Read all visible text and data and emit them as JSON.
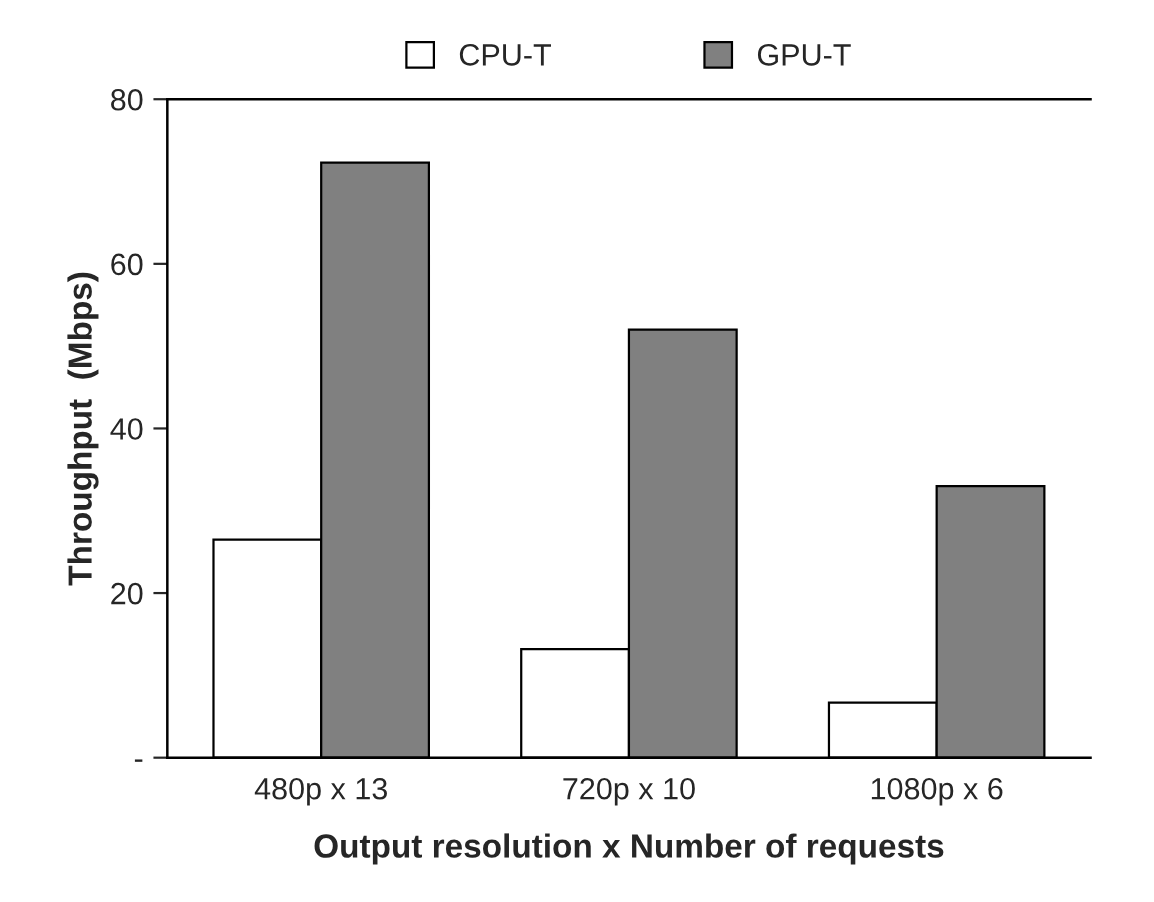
{
  "chart_data": {
    "type": "bar",
    "xlabel": "Output resolution x Number of requests",
    "ylabel": "Throughput  (Mbps)",
    "categories": [
      "480p x 13",
      "720p x 10",
      "1080p x 6"
    ],
    "series": [
      {
        "name": "CPU-T",
        "color": "#ffffff",
        "values": [
          26.5,
          13.2,
          6.7
        ]
      },
      {
        "name": "GPU-T",
        "color": "#808080",
        "values": [
          72.3,
          52,
          33
        ]
      }
    ],
    "ylim": [
      0,
      80
    ],
    "yticks": [
      {
        "value": 0,
        "label": "-"
      },
      20,
      40,
      60,
      80
    ],
    "grid": false,
    "legend": "top"
  }
}
